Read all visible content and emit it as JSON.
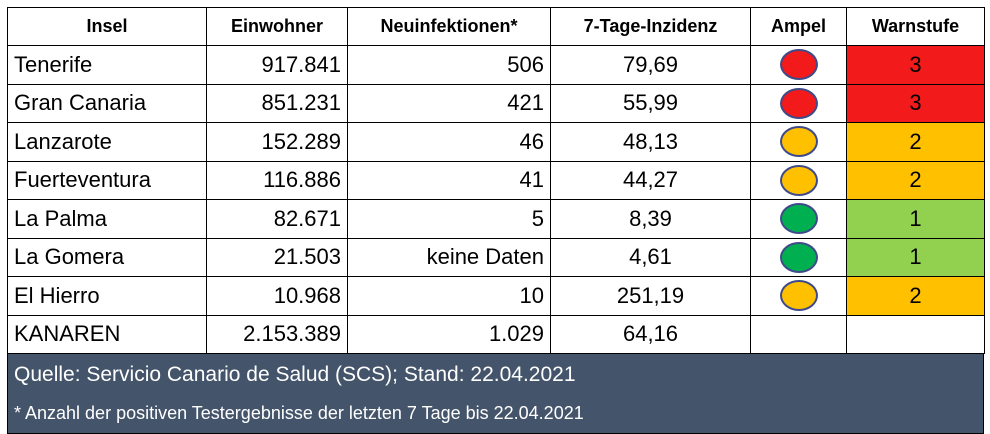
{
  "colors": {
    "red": "#f21a1a",
    "orange": "#ffc000",
    "green": "#00b050",
    "warn_green": "#92d050",
    "total_text": "#4a78c0",
    "footer_bg": "#44546a"
  },
  "headers": {
    "insel": "Insel",
    "einwohner": "Einwohner",
    "neuinfektionen": "Neuinfektionen*",
    "inzidenz": "7-Tage-Inzidenz",
    "ampel": "Ampel",
    "warnstufe": "Warnstufe"
  },
  "rows": [
    {
      "insel": "Tenerife",
      "einwohner": "917.841",
      "neuinfektionen": "506",
      "inzidenz": "79,69",
      "ampel": "red",
      "warnstufe": "3",
      "warn_color": "red"
    },
    {
      "insel": "Gran Canaria",
      "einwohner": "851.231",
      "neuinfektionen": "421",
      "inzidenz": "55,99",
      "ampel": "red",
      "warnstufe": "3",
      "warn_color": "red"
    },
    {
      "insel": "Lanzarote",
      "einwohner": "152.289",
      "neuinfektionen": "46",
      "inzidenz": "48,13",
      "ampel": "orange",
      "warnstufe": "2",
      "warn_color": "orange"
    },
    {
      "insel": "Fuerteventura",
      "einwohner": "116.886",
      "neuinfektionen": "41",
      "inzidenz": "44,27",
      "ampel": "orange",
      "warnstufe": "2",
      "warn_color": "orange"
    },
    {
      "insel": "La Palma",
      "einwohner": "82.671",
      "neuinfektionen": "5",
      "inzidenz": "8,39",
      "ampel": "green",
      "warnstufe": "1",
      "warn_color": "warn_green"
    },
    {
      "insel": "La Gomera",
      "einwohner": "21.503",
      "neuinfektionen": "keine Daten",
      "inzidenz": "4,61",
      "ampel": "green",
      "warnstufe": "1",
      "warn_color": "warn_green"
    },
    {
      "insel": "El Hierro",
      "einwohner": "10.968",
      "neuinfektionen": "10",
      "inzidenz": "251,19",
      "ampel": "orange",
      "warnstufe": "2",
      "warn_color": "orange"
    }
  ],
  "total": {
    "insel": "KANAREN",
    "einwohner": "2.153.389",
    "neuinfektionen": "1.029",
    "inzidenz": "64,16"
  },
  "footer": {
    "source": "Quelle: Servicio Canario de Salud (SCS); Stand: 22.04.2021",
    "note": "* Anzahl der positiven Testergebnisse der letzten 7 Tage bis 22.04.2021"
  }
}
